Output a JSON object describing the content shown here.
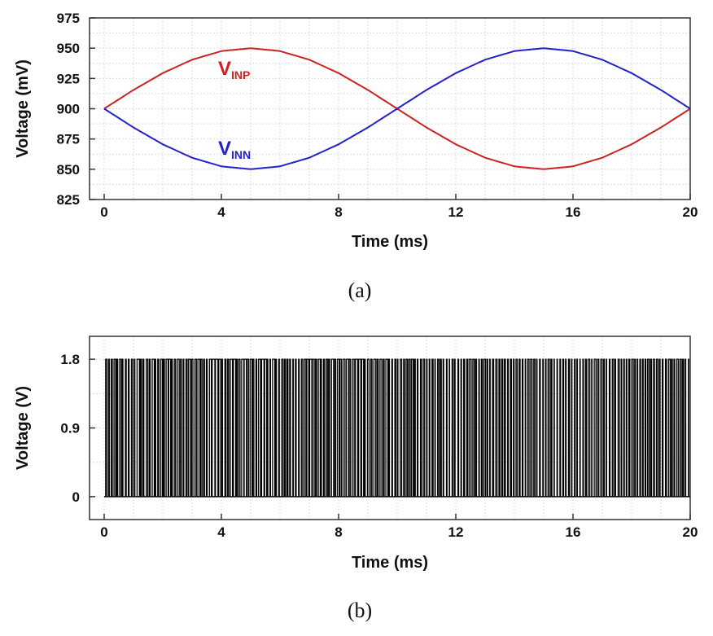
{
  "chart_data": [
    {
      "type": "line",
      "caption": "(a)",
      "xlabel": "Time (ms)",
      "ylabel": "Voltage (mV)",
      "xlim": [
        -0.5,
        20
      ],
      "ylim": [
        825,
        975
      ],
      "x_ticks": [
        0,
        4,
        8,
        12,
        16,
        20
      ],
      "y_ticks": [
        825,
        850,
        875,
        900,
        925,
        950,
        975
      ],
      "grid": true,
      "series": [
        {
          "name": "V",
          "subscript": "INP",
          "color": "#cc2222",
          "x": [
            0,
            1,
            2,
            3,
            4,
            5,
            6,
            7,
            8,
            9,
            10,
            11,
            12,
            13,
            14,
            15,
            16,
            17,
            18,
            19,
            20
          ],
          "y": [
            900,
            915.5,
            929.4,
            940.5,
            947.6,
            950,
            947.6,
            940.5,
            929.4,
            915.5,
            900,
            884.5,
            870.6,
            859.5,
            852.4,
            850,
            852.4,
            859.5,
            870.6,
            884.5,
            900
          ]
        },
        {
          "name": "V",
          "subscript": "INN",
          "color": "#2222cc",
          "x": [
            0,
            1,
            2,
            3,
            4,
            5,
            6,
            7,
            8,
            9,
            10,
            11,
            12,
            13,
            14,
            15,
            16,
            17,
            18,
            19,
            20
          ],
          "y": [
            900,
            884.5,
            870.6,
            859.5,
            852.4,
            850,
            852.4,
            859.5,
            870.6,
            884.5,
            900,
            915.5,
            929.4,
            940.5,
            947.6,
            950,
            947.6,
            940.5,
            929.4,
            915.5,
            900
          ]
        }
      ]
    },
    {
      "type": "line",
      "caption": "(b)",
      "xlabel": "Time (ms)",
      "ylabel": "Voltage (V)",
      "xlim": [
        -0.5,
        20
      ],
      "ylim": [
        -0.3,
        2.1
      ],
      "x_ticks": [
        0,
        4,
        8,
        12,
        16,
        20
      ],
      "y_tick_labels": [
        "0",
        "0.9",
        "1.8"
      ],
      "y_ticks": [
        0,
        0.9,
        1.8
      ],
      "grid": true,
      "signal": {
        "description_level_low": 0,
        "level_low": 0,
        "level_high": 1.8,
        "duration_ms": [
          0,
          20
        ],
        "color": "#000000"
      }
    }
  ]
}
